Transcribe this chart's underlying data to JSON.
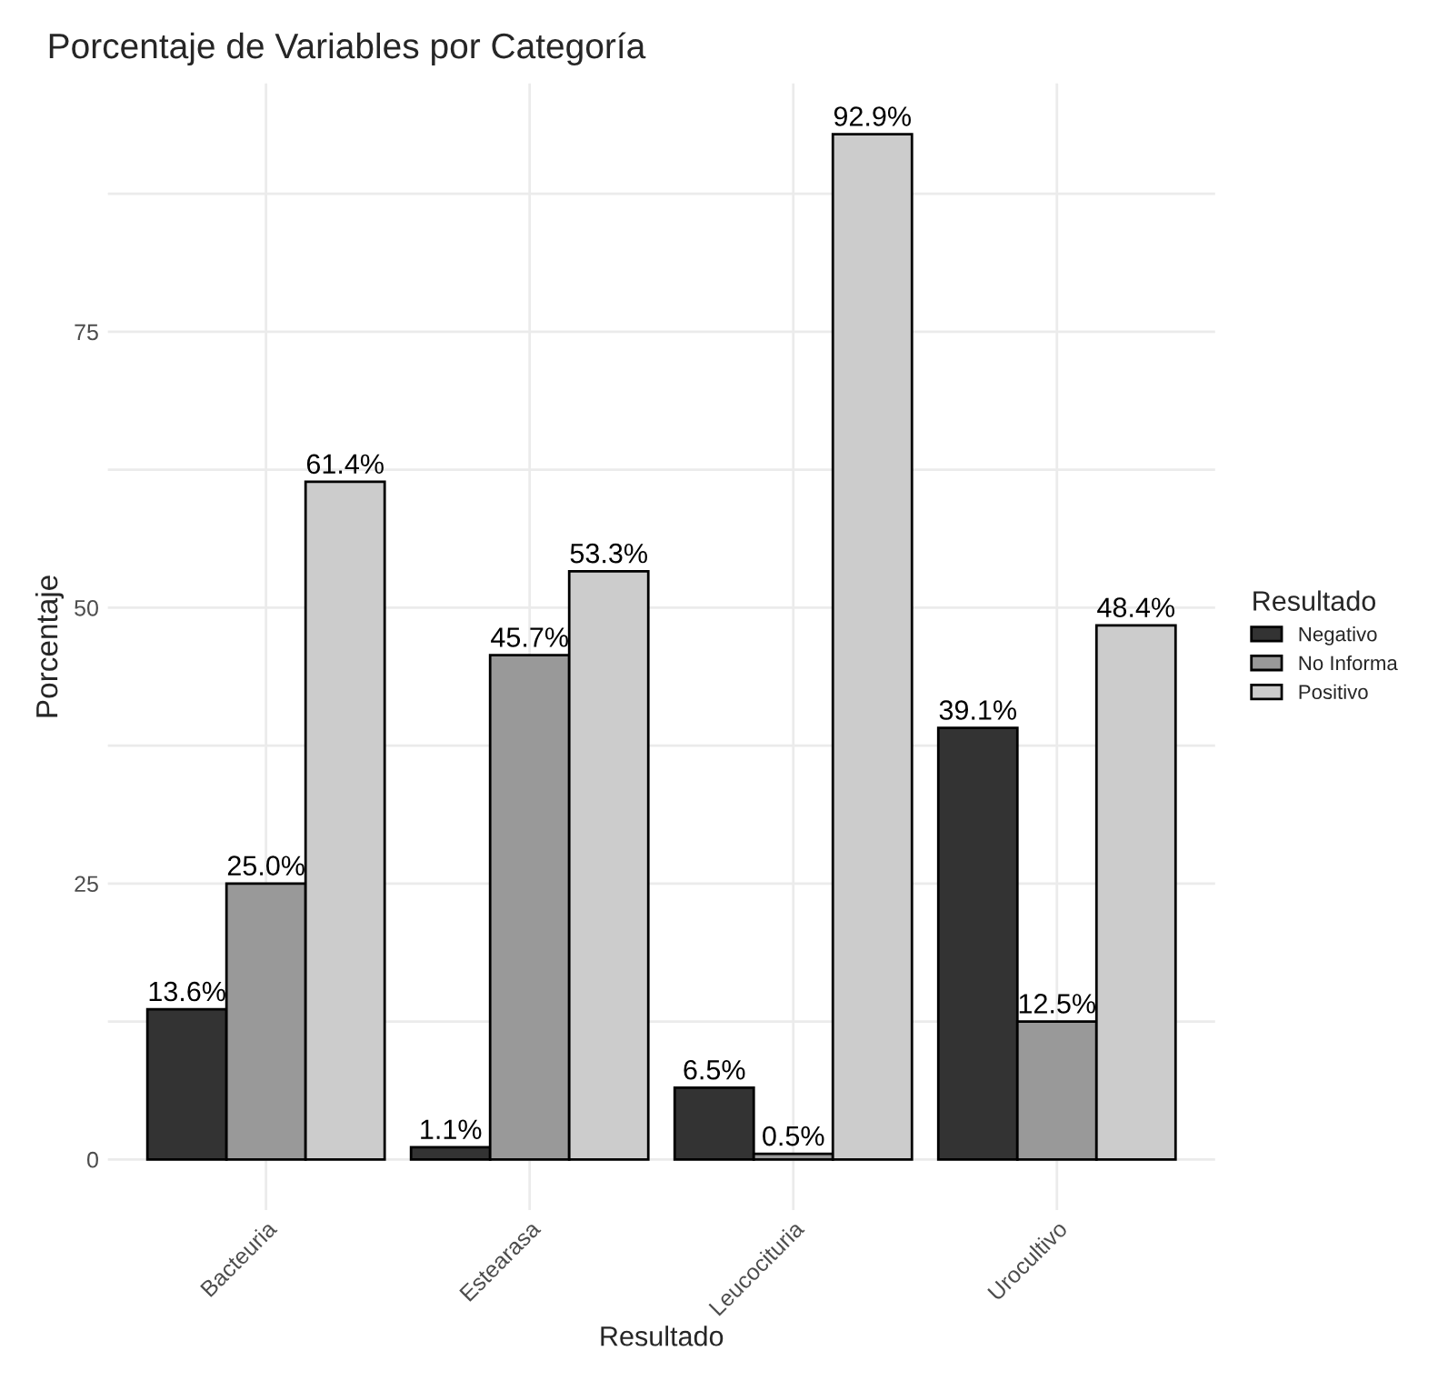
{
  "chart_data": {
    "type": "bar",
    "title": "Porcentaje de Variables por Categoría",
    "xlabel": "Resultado",
    "ylabel": "Porcentaje",
    "legend_title": "Resultado",
    "categories": [
      "Bacteuria",
      "Estearasa",
      "Leucocituria",
      "Urocultivo"
    ],
    "series": [
      {
        "name": "Negativo",
        "color": "#333333",
        "values": [
          13.6,
          1.1,
          6.5,
          39.1
        ],
        "value_labels": [
          "13.6%",
          "1.1%",
          "6.5%",
          "39.1%"
        ]
      },
      {
        "name": "No Informa",
        "color": "#999999",
        "values": [
          25.0,
          45.7,
          0.5,
          12.5
        ],
        "value_labels": [
          "25.0%",
          "45.7%",
          "0.5%",
          "12.5%"
        ]
      },
      {
        "name": "Positivo",
        "color": "#cccccc",
        "values": [
          61.4,
          53.3,
          92.9,
          48.4
        ],
        "value_labels": [
          "61.4%",
          "53.3%",
          "92.9%",
          "48.4%"
        ]
      }
    ],
    "ylim": [
      -4.6,
      97.5
    ],
    "yticks": [
      0,
      {
        "value": 12.5,
        "label": null
      },
      25,
      {
        "value": 37.5,
        "label": null
      },
      50,
      {
        "value": 62.5,
        "label": null
      },
      75,
      {
        "value": 87.5,
        "label": null
      }
    ],
    "grid": true,
    "legend": "right"
  }
}
